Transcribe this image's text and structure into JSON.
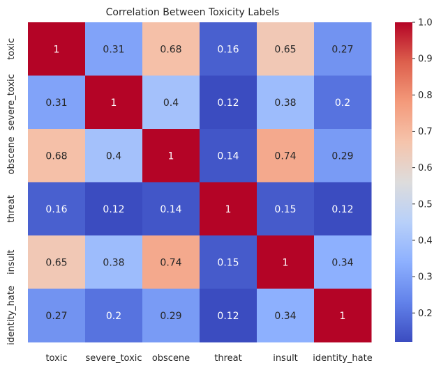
{
  "chart_data": {
    "type": "heatmap",
    "title": "Correlation Between Toxicity Labels",
    "xlabel": "",
    "ylabel": "",
    "x_labels": [
      "toxic",
      "severe_toxic",
      "obscene",
      "threat",
      "insult",
      "identity_hate"
    ],
    "y_labels": [
      "toxic",
      "severe_toxic",
      "obscene",
      "threat",
      "insult",
      "identity_hate"
    ],
    "values": [
      [
        1,
        0.31,
        0.68,
        0.16,
        0.65,
        0.27
      ],
      [
        0.31,
        1,
        0.4,
        0.12,
        0.38,
        0.2
      ],
      [
        0.68,
        0.4,
        1,
        0.14,
        0.74,
        0.29
      ],
      [
        0.16,
        0.12,
        0.14,
        1,
        0.15,
        0.12
      ],
      [
        0.65,
        0.38,
        0.74,
        0.15,
        1,
        0.34
      ],
      [
        0.27,
        0.2,
        0.29,
        0.12,
        0.34,
        1
      ]
    ],
    "cell_labels": [
      [
        "1",
        "0.31",
        "0.68",
        "0.16",
        "0.65",
        "0.27"
      ],
      [
        "0.31",
        "1",
        "0.4",
        "0.12",
        "0.38",
        "0.2"
      ],
      [
        "0.68",
        "0.4",
        "1",
        "0.14",
        "0.74",
        "0.29"
      ],
      [
        "0.16",
        "0.12",
        "0.14",
        "1",
        "0.15",
        "0.12"
      ],
      [
        "0.65",
        "0.38",
        "0.74",
        "0.15",
        "1",
        "0.34"
      ],
      [
        "0.27",
        "0.2",
        "0.29",
        "0.12",
        "0.34",
        "1"
      ]
    ],
    "colormap": "coolwarm",
    "colormap_stops": [
      "#3b4cc0",
      "#6282ea",
      "#8db0fe",
      "#b8d0f9",
      "#dddcdc",
      "#f5c4ac",
      "#f49a7b",
      "#dd604d",
      "#b40426"
    ],
    "vmin": 0.12,
    "vmax": 1.0,
    "colorbar_ticks": [
      "0.2",
      "0.3",
      "0.4",
      "0.5",
      "0.6",
      "0.7",
      "0.8",
      "0.9",
      "1.0"
    ],
    "colorbar_tick_values": [
      0.2,
      0.3,
      0.4,
      0.5,
      0.6,
      0.7,
      0.8,
      0.9,
      1.0
    ],
    "annot_dark_color": "#262626",
    "annot_light_color": "#ffffff",
    "text_color": "#262626",
    "grid": false
  }
}
